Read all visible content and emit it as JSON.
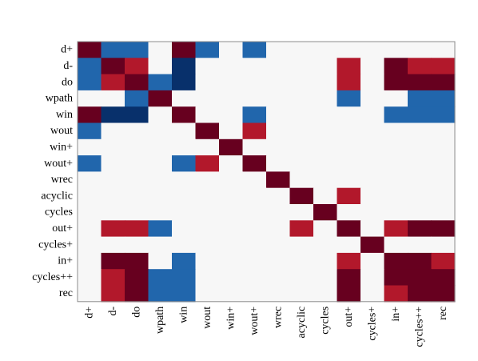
{
  "chart_data": {
    "type": "heatmap",
    "title": "",
    "xlabel": "",
    "ylabel": "",
    "rows": [
      "d+",
      "d-",
      "do",
      "wpath",
      "win",
      "wout",
      "win+",
      "wout+",
      "wrec",
      "acyclic",
      "cycles",
      "out+",
      "cycles+",
      "in+",
      "cycles++",
      "rec"
    ],
    "cols": [
      "d+",
      "d-",
      "do",
      "wpath",
      "win",
      "wout",
      "win+",
      "wout+",
      "wrec",
      "acyclic",
      "cycles",
      "out+",
      "cycles+",
      "in+",
      "cycles++",
      "rec"
    ],
    "values": [
      [
        3,
        -2,
        -2,
        0,
        3,
        -2,
        0,
        -2,
        0,
        0,
        0,
        0,
        0,
        0,
        0,
        0
      ],
      [
        -2,
        3,
        2,
        0,
        -3,
        0,
        0,
        0,
        0,
        0,
        0,
        2,
        0,
        3,
        2,
        2
      ],
      [
        -2,
        2,
        3,
        -2,
        -3,
        0,
        0,
        0,
        0,
        0,
        0,
        2,
        0,
        3,
        3,
        3
      ],
      [
        0,
        0,
        -2,
        3,
        0,
        0,
        0,
        0,
        0,
        0,
        0,
        -2,
        0,
        0,
        -2,
        -2
      ],
      [
        3,
        -3,
        -3,
        0,
        3,
        0,
        0,
        -2,
        0,
        0,
        0,
        0,
        0,
        -2,
        -2,
        -2
      ],
      [
        -2,
        0,
        0,
        0,
        0,
        3,
        0,
        2,
        0,
        0,
        0,
        0,
        0,
        0,
        0,
        0
      ],
      [
        0,
        0,
        0,
        0,
        0,
        0,
        3,
        0,
        0,
        0,
        0,
        0,
        0,
        0,
        0,
        0
      ],
      [
        -2,
        0,
        0,
        0,
        -2,
        2,
        0,
        3,
        0,
        0,
        0,
        0,
        0,
        0,
        0,
        0
      ],
      [
        0,
        0,
        0,
        0,
        0,
        0,
        0,
        0,
        3,
        0,
        0,
        0,
        0,
        0,
        0,
        0
      ],
      [
        0,
        0,
        0,
        0,
        0,
        0,
        0,
        0,
        0,
        3,
        0,
        2,
        0,
        0,
        0,
        0
      ],
      [
        0,
        0,
        0,
        0,
        0,
        0,
        0,
        0,
        0,
        0,
        3,
        0,
        0,
        0,
        0,
        0
      ],
      [
        0,
        2,
        2,
        -2,
        0,
        0,
        0,
        0,
        0,
        2,
        0,
        3,
        0,
        2,
        3,
        3
      ],
      [
        0,
        0,
        0,
        0,
        0,
        0,
        0,
        0,
        0,
        0,
        0,
        0,
        3,
        0,
        0,
        0
      ],
      [
        0,
        3,
        3,
        0,
        -2,
        0,
        0,
        0,
        0,
        0,
        0,
        2,
        0,
        3,
        3,
        2
      ],
      [
        0,
        2,
        3,
        -2,
        -2,
        0,
        0,
        0,
        0,
        0,
        0,
        3,
        0,
        3,
        3,
        3
      ],
      [
        0,
        2,
        3,
        -2,
        -2,
        0,
        0,
        0,
        0,
        0,
        0,
        3,
        0,
        2,
        3,
        3
      ]
    ],
    "color_scale": {
      "-3": "#08306b",
      "-2": "#2166ac",
      "0": "#f7f7f7",
      "2": "#b2182b",
      "3": "#67001f"
    },
    "grid": false,
    "legend": "none"
  }
}
